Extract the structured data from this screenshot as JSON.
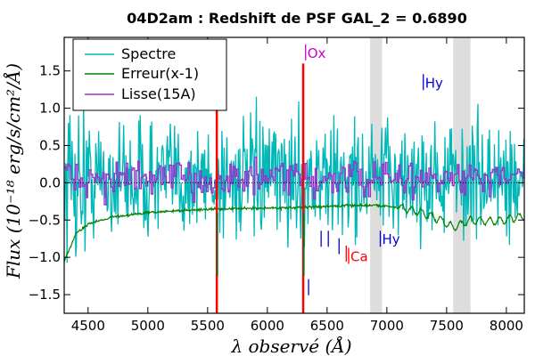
{
  "chart_data": {
    "type": "line",
    "title": "04D2am : Redshift de PSF GAL_2 = 0.6890",
    "xlabel": "λ observé (Å)",
    "ylabel": "Flux (10⁻¹⁸ erg/s/cm²/Å)",
    "xlim": [
      4300,
      8150
    ],
    "ylim": [
      -1.75,
      1.95
    ],
    "x_ticks": [
      4500,
      5000,
      5500,
      6000,
      6500,
      7000,
      7500,
      8000
    ],
    "y_ticks": [
      -1.5,
      -1.0,
      -0.5,
      0.0,
      0.5,
      1.0,
      1.5
    ],
    "y_tick_labels": [
      "−1.5",
      "−1.0",
      "−0.5",
      "0.0",
      "0.5",
      "1.0",
      "1.5"
    ],
    "grid": false,
    "legend_position": "top-left",
    "series": [
      {
        "name": "Spectre",
        "color": "#00b8b8",
        "style": "noisy",
        "x": [
          4300,
          4500,
          5000,
          5500,
          6000,
          6500,
          7000,
          7500,
          8000,
          8150
        ],
        "y": [
          0.05,
          0.05,
          0.05,
          0.05,
          0.05,
          0.05,
          0.05,
          0.05,
          0.05,
          0.05
        ]
      },
      {
        "name": "Erreur(x-1)",
        "color": "#008000",
        "style": "smooth",
        "x": [
          4300,
          4400,
          4500,
          4700,
          5000,
          5300,
          5600,
          6000,
          6300,
          6600,
          6900,
          7100,
          7300,
          7450,
          7550,
          7700,
          7900,
          8150
        ],
        "y": [
          -1.05,
          -0.68,
          -0.55,
          -0.46,
          -0.4,
          -0.37,
          -0.35,
          -0.34,
          -0.33,
          -0.31,
          -0.3,
          -0.33,
          -0.4,
          -0.5,
          -0.6,
          -0.5,
          -0.52,
          -0.45
        ]
      },
      {
        "name": "Lisse(15A)",
        "color": "#9933cc",
        "style": "step",
        "x": [
          4300,
          5000,
          5500,
          6000,
          6500,
          7000,
          7500,
          8150
        ],
        "y": [
          0.05,
          0.05,
          0.05,
          0.05,
          0.05,
          0.05,
          0.05,
          0.05
        ]
      }
    ],
    "shaded_bands": [
      {
        "from": 6860,
        "to": 6960
      },
      {
        "from": 7555,
        "to": 7700
      }
    ],
    "sky_lines": [
      {
        "x": 5577,
        "color": "#ff0000"
      },
      {
        "x": 6300,
        "color": "#ff0000"
      }
    ],
    "line_markers": [
      {
        "label": "Ox",
        "x": 6320,
        "y": 1.75,
        "color": "#cc00cc"
      },
      {
        "label": "Hy",
        "x": 7305,
        "y": 1.35,
        "color": "#0000dd"
      },
      {
        "label": "Hy",
        "x": 6945,
        "y": -0.75,
        "color": "#0000dd"
      },
      {
        "label": "Ca",
        "x": 6680,
        "y": -0.98,
        "color": "#ff0000"
      }
    ],
    "unlabeled_ticks": [
      {
        "x": 6345,
        "y": -1.4,
        "color": "#0000dd"
      },
      {
        "x": 6450,
        "y": -0.75,
        "color": "#0000dd"
      },
      {
        "x": 6510,
        "y": -0.75,
        "color": "#0000dd"
      },
      {
        "x": 6600,
        "y": -0.85,
        "color": "#0000dd"
      },
      {
        "x": 6660,
        "y": -0.95,
        "color": "#ff0000"
      }
    ],
    "zero_line": {
      "y": 0.0,
      "style": "dotted"
    }
  }
}
